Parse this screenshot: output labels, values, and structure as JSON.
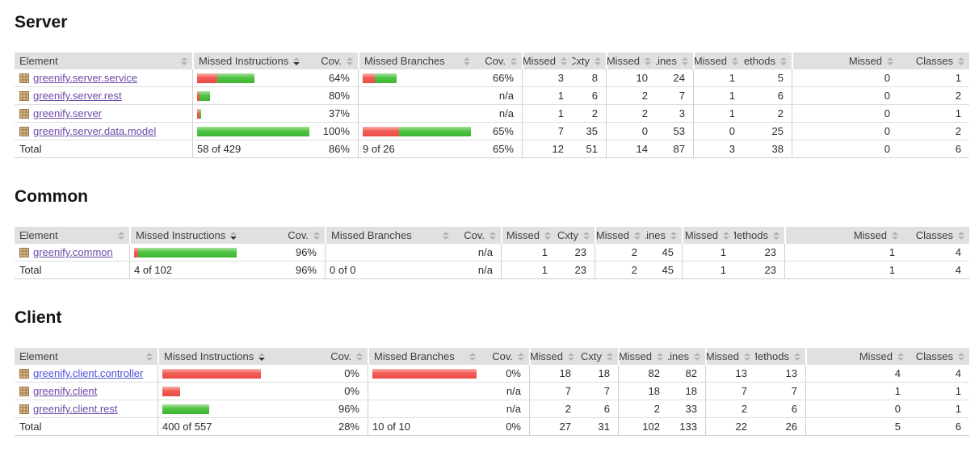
{
  "columns": [
    "Element",
    "Missed Instructions",
    "Cov.",
    "Missed Branches",
    "Cov.",
    "Missed",
    "Cxty",
    "Missed",
    "Lines",
    "Missed",
    "Methods",
    "Missed",
    "Classes"
  ],
  "colors": {
    "header-bg": "#e0e0e0",
    "header-text": "#404040",
    "text-main": "#2b2b2b",
    "title-text": "#151515",
    "row-line": "#dedede",
    "group-line": "#cfcfcf",
    "link-visited": "#6e49a8",
    "link-fresh": "#4d4fd6",
    "red-hi": "#f9b1ad",
    "red-mid": "#f25c55",
    "red-lo": "#ea4a44",
    "green-hi": "#a7e29b",
    "green-mid": "#50c343",
    "green-lo": "#3cb531",
    "sort-idle": "#b4b4b4",
    "sort-active": "#333333"
  },
  "icons": {
    "package": "package-icon",
    "sort": "sort-arrows-icon"
  },
  "sections": [
    {
      "title": "Server",
      "rows": [
        {
          "name": "greenify.server.service",
          "mi_bar": {
            "red": 25,
            "green": 46
          },
          "mi_cov": "64%",
          "mb_bar": {
            "red": 15,
            "green": 27
          },
          "mb_cov": "66%",
          "nums": [
            "3",
            "8",
            "10",
            "24",
            "1",
            "5",
            "0",
            "1"
          ]
        },
        {
          "name": "greenify.server.rest",
          "mi_bar": {
            "red": 3,
            "green": 13
          },
          "mi_cov": "80%",
          "mb_cov": "n/a",
          "nums": [
            "1",
            "6",
            "2",
            "7",
            "1",
            "6",
            "0",
            "2"
          ]
        },
        {
          "name": "greenify.server",
          "mi_bar": {
            "red": 3,
            "green": 2
          },
          "mi_cov": "37%",
          "mb_cov": "n/a",
          "nums": [
            "1",
            "2",
            "2",
            "3",
            "1",
            "2",
            "0",
            "1"
          ]
        },
        {
          "name": "greenify.server.data.model",
          "mi_bar": {
            "red": 0,
            "green": 139
          },
          "mi_cov": "100%",
          "mb_bar": {
            "red": 47,
            "green": 93
          },
          "mb_cov": "65%",
          "nums": [
            "7",
            "35",
            "0",
            "53",
            "0",
            "25",
            "0",
            "2"
          ]
        }
      ],
      "total": {
        "label": "Total",
        "mi": "58 of 429",
        "mi_cov": "86%",
        "mb": "9 of 26",
        "mb_cov": "65%",
        "nums": [
          "12",
          "51",
          "14",
          "87",
          "3",
          "38",
          "0",
          "6"
        ]
      }
    },
    {
      "title": "Common",
      "rows": [
        {
          "name": "greenify.common",
          "mi_bar": {
            "red": 5,
            "green": 122
          },
          "mi_cov": "96%",
          "mb_cov": "n/a",
          "nums": [
            "1",
            "23",
            "2",
            "45",
            "1",
            "23",
            "1",
            "4"
          ]
        }
      ],
      "total": {
        "label": "Total",
        "mi": "4 of 102",
        "mi_cov": "96%",
        "mb": "0 of 0",
        "mb_cov": "n/a",
        "nums": [
          "1",
          "23",
          "2",
          "45",
          "1",
          "23",
          "1",
          "4"
        ]
      }
    },
    {
      "title": "Client",
      "rows": [
        {
          "name": "greenify.client.controller",
          "mi_bar": {
            "red": 122,
            "green": 0
          },
          "mi_cov": "0%",
          "mb_bar": {
            "red": 140,
            "green": 0
          },
          "mb_cov": "0%",
          "nums": [
            "18",
            "18",
            "82",
            "82",
            "13",
            "13",
            "4",
            "4"
          ]
        },
        {
          "name": "greenify.client",
          "mi_bar": {
            "red": 22,
            "green": 0
          },
          "mi_cov": "0%",
          "mb_cov": "n/a",
          "nums": [
            "7",
            "7",
            "18",
            "18",
            "7",
            "7",
            "1",
            "1"
          ]
        },
        {
          "name": "greenify.client.rest",
          "mi_bar": {
            "red": 0,
            "green": 58
          },
          "mi_cov": "96%",
          "mb_cov": "n/a",
          "nums": [
            "2",
            "6",
            "2",
            "33",
            "2",
            "6",
            "0",
            "1"
          ]
        }
      ],
      "total": {
        "label": "Total",
        "mi": "400 of 557",
        "mi_cov": "28%",
        "mb": "10 of 10",
        "mb_cov": "0%",
        "nums": [
          "27",
          "31",
          "102",
          "133",
          "22",
          "26",
          "5",
          "6"
        ]
      }
    }
  ]
}
